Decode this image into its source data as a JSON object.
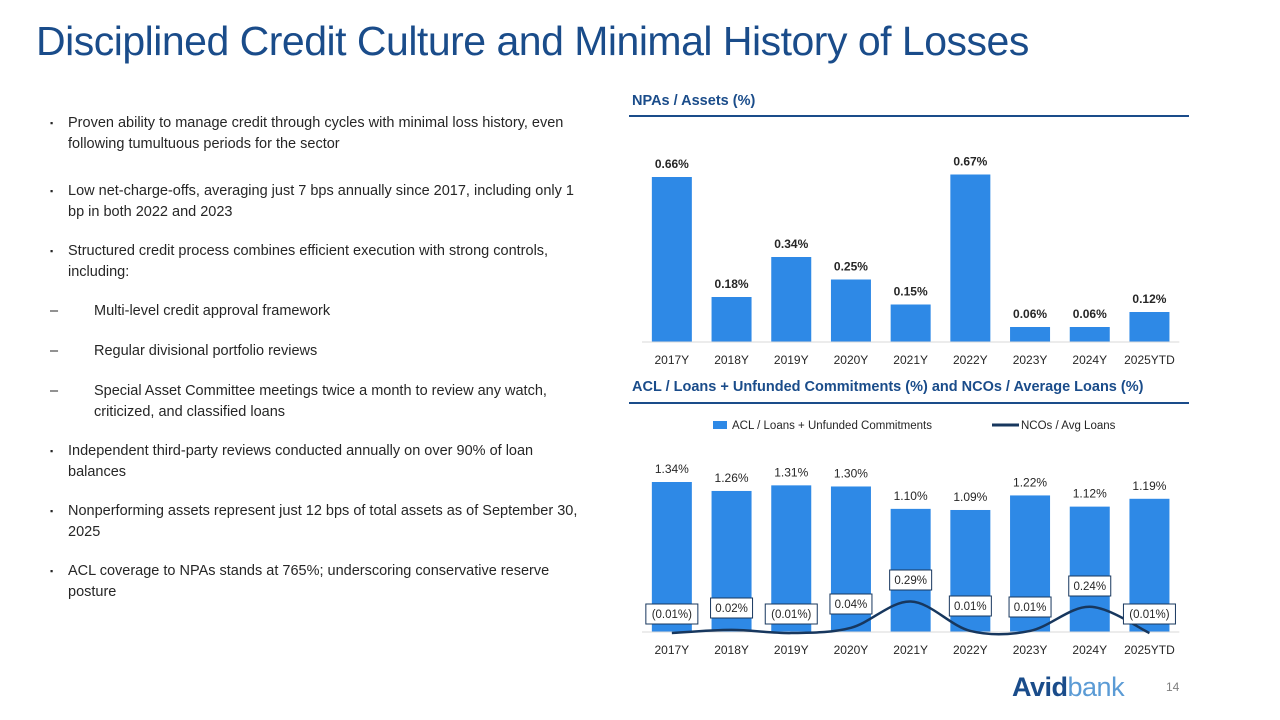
{
  "title": "Disciplined Credit Culture and Minimal History of Losses",
  "bullets": [
    {
      "level": 1,
      "text": "Proven ability to manage credit through cycles with minimal loss history, even following tumultuous periods for the sector"
    },
    {
      "level": 1,
      "text": "Low net-charge-offs, averaging just 7 bps annually since 2017, including only 1 bp in both 2022 and 2023"
    },
    {
      "level": 1,
      "text": "Structured credit process combines efficient execution with strong controls, including:"
    },
    {
      "level": 2,
      "text": "Multi-level credit approval framework"
    },
    {
      "level": 2,
      "text": "Regular divisional portfolio reviews"
    },
    {
      "level": 2,
      "text": "Special Asset Committee meetings twice a month to review any watch, criticized, and classified loans"
    },
    {
      "level": 1,
      "text": "Independent third-party reviews conducted annually on over 90% of loan balances"
    },
    {
      "level": 1,
      "text": "Nonperforming assets represent just 12 bps of total assets as of September 30, 2025"
    },
    {
      "level": 1,
      "text": "ACL coverage to NPAs stands at 765%; underscoring conservative reserve posture"
    }
  ],
  "bullet_marker": "▪",
  "sub_marker": "–",
  "chart_data": [
    {
      "type": "bar",
      "title": "NPAs / Assets (%)",
      "categories": [
        "2017Y",
        "2018Y",
        "2019Y",
        "2020Y",
        "2021Y",
        "2022Y",
        "2023Y",
        "2024Y",
        "2025YTD"
      ],
      "values": [
        0.66,
        0.18,
        0.34,
        0.25,
        0.15,
        0.67,
        0.06,
        0.06,
        0.12
      ],
      "labels": [
        "0.66%",
        "0.18%",
        "0.34%",
        "0.25%",
        "0.15%",
        "0.67%",
        "0.06%",
        "0.06%",
        "0.12%"
      ],
      "ylim": [
        0,
        0.7
      ],
      "grid": false,
      "bar_color": "#2e89e6"
    },
    {
      "type": "bar+line",
      "title": "ACL / Loans + Unfunded Commitments (%) and NCOs / Average Loans (%)",
      "categories": [
        "2017Y",
        "2018Y",
        "2019Y",
        "2020Y",
        "2021Y",
        "2022Y",
        "2023Y",
        "2024Y",
        "2025YTD"
      ],
      "legend_position": "top",
      "grid": false,
      "series": [
        {
          "name": "ACL / Loans + Unfunded Commitments",
          "kind": "bar",
          "color": "#2e89e6",
          "values": [
            1.34,
            1.26,
            1.31,
            1.3,
            1.1,
            1.09,
            1.22,
            1.12,
            1.19
          ],
          "labels": [
            "1.34%",
            "1.26%",
            "1.31%",
            "1.30%",
            "1.10%",
            "1.09%",
            "1.22%",
            "1.12%",
            "1.19%"
          ]
        },
        {
          "name": "NCOs / Avg Loans",
          "kind": "line",
          "color": "#17375e",
          "values": [
            -0.01,
            0.02,
            -0.01,
            0.04,
            0.29,
            0.01,
            0.01,
            0.24,
            -0.01
          ],
          "labels": [
            "(0.01%)",
            "0.02%",
            "(0.01%)",
            "0.04%",
            "0.29%",
            "0.01%",
            "0.01%",
            "0.24%",
            "(0.01%)"
          ]
        }
      ]
    }
  ],
  "footer": {
    "logo_part1": "Avid",
    "logo_part2": "bank",
    "page_number": "14"
  }
}
